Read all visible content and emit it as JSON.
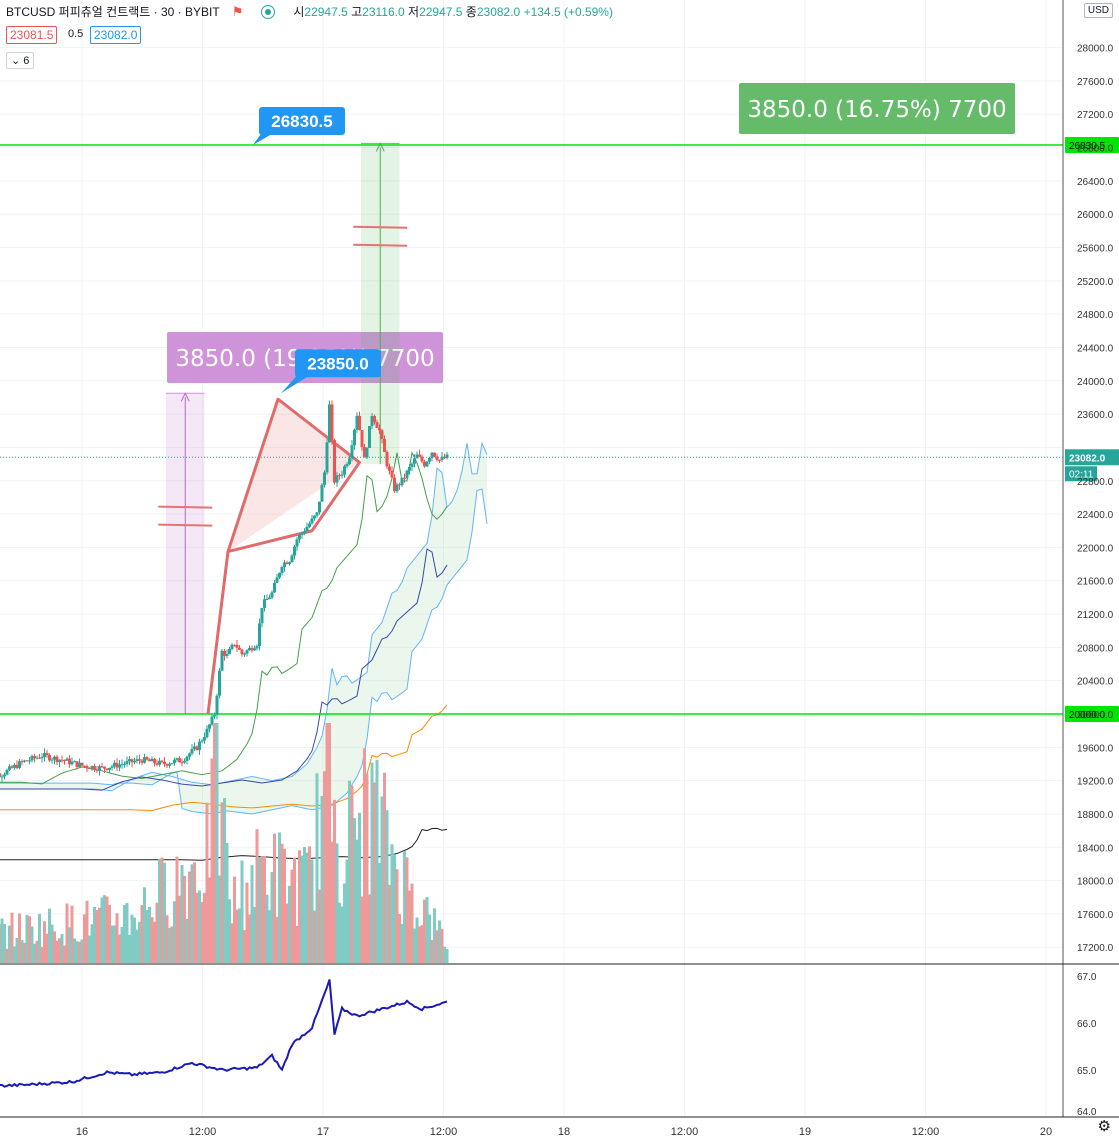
{
  "header": {
    "symbol": "BTCUSD 퍼피츄얼 컨트랙트 · 30 · BYBIT",
    "open_label": "시",
    "open": "22947.5",
    "high_label": "고",
    "high": "23116.0",
    "low_label": "저",
    "low": "22947.5",
    "close_label": "종",
    "close": "23082.0",
    "change": "+134.5 (+0.59%)"
  },
  "bid": "23081.5",
  "spread": "0.5",
  "ask": "23082.0",
  "indicator_count": "6",
  "currency": "USD",
  "colors": {
    "up": "#26a69a",
    "down": "#ef5350",
    "triangle": "#e06b6b",
    "level": "#00e600",
    "proj_left": "#ce93d8",
    "proj_right": "#66bb6a",
    "rsi": "#1a1ab5",
    "price_badge": "#26a69a",
    "callout": "#2196f3"
  },
  "chart_data": {
    "type": "candlestick",
    "x_tick_labels": [
      "16",
      "12:00",
      "17",
      "12:00",
      "18",
      "12:00",
      "19",
      "12:00",
      "20"
    ],
    "y_tick_labels": [
      "28000.0",
      "27600.0",
      "27200.0",
      "26800.0",
      "26400.0",
      "26000.0",
      "25600.0",
      "25200.0",
      "24800.0",
      "24400.0",
      "24000.0",
      "23600.0",
      "23200.0",
      "22800.0",
      "22400.0",
      "22000.0",
      "21600.0",
      "21200.0",
      "20800.0",
      "20400.0",
      "20000.0",
      "19600.0",
      "19200.0",
      "18800.0",
      "18400.0",
      "18000.0",
      "17600.0",
      "17200.0"
    ],
    "ylim": [
      17100,
      28200
    ],
    "y_top_label": "2",
    "current_price": "23082.0",
    "countdown": "02:11",
    "horizontal_levels": [
      {
        "label": "26830.5",
        "value": 26830.5
      },
      {
        "label": "20000.0",
        "value": 20000.0
      }
    ],
    "callouts": [
      {
        "label": "26830.5",
        "value": 26830.5,
        "x_hours": 54.2
      },
      {
        "label": "23850.0",
        "value": 23850.0,
        "x_hours": 59.8
      }
    ],
    "projections": [
      {
        "label": "3850.0 (19.25%) 7700",
        "from": 20000,
        "to": 23850,
        "x_start_hours": 36.8,
        "x_end_hours": 44.5
      },
      {
        "label": "3850.0 (16.75%) 7700",
        "from": 23000,
        "to": 26850,
        "x_start_hours": 75.8,
        "x_end_hours": 83.5
      }
    ],
    "triangle": [
      {
        "x_hours": 45.2,
        "value": 20000
      },
      {
        "x_hours": 49.2,
        "value": 21950
      },
      {
        "x_hours": 59.2,
        "value": 23780
      },
      {
        "x_hours": 75.5,
        "value": 23020
      },
      {
        "x_hours": 66.0,
        "value": 22200
      },
      {
        "x_hours": 49.2,
        "value": 21950
      }
    ],
    "key_prices": [
      {
        "x_hours": 0,
        "value": 19300
      },
      {
        "x_hours": 4,
        "value": 19280
      },
      {
        "x_hours": 8,
        "value": 19420
      },
      {
        "x_hours": 12,
        "value": 19500
      },
      {
        "x_hours": 16,
        "value": 19450
      },
      {
        "x_hours": 20,
        "value": 19380
      },
      {
        "x_hours": 24,
        "value": 19350
      },
      {
        "x_hours": 28,
        "value": 19400
      },
      {
        "x_hours": 32,
        "value": 19450
      },
      {
        "x_hours": 36,
        "value": 19400
      },
      {
        "x_hours": 40,
        "value": 19450
      },
      {
        "x_hours": 43,
        "value": 19600
      },
      {
        "x_hours": 45,
        "value": 19800
      },
      {
        "x_hours": 46.5,
        "value": 20000
      },
      {
        "x_hours": 48,
        "value": 20750
      },
      {
        "x_hours": 49,
        "value": 20700
      },
      {
        "x_hours": 50.5,
        "value": 20850
      },
      {
        "x_hours": 52,
        "value": 20720
      },
      {
        "x_hours": 53.5,
        "value": 20780
      },
      {
        "x_hours": 55,
        "value": 20850
      },
      {
        "x_hours": 56,
        "value": 21300
      },
      {
        "x_hours": 58,
        "value": 21450
      },
      {
        "x_hours": 60,
        "value": 21800
      },
      {
        "x_hours": 61.5,
        "value": 21850
      },
      {
        "x_hours": 63,
        "value": 22100
      },
      {
        "x_hours": 65,
        "value": 22250
      },
      {
        "x_hours": 67,
        "value": 22400
      },
      {
        "x_hours": 68.5,
        "value": 22900
      },
      {
        "x_hours": 69.5,
        "value": 23700
      },
      {
        "x_hours": 70.5,
        "value": 22800
      },
      {
        "x_hours": 72,
        "value": 22900
      },
      {
        "x_hours": 73.5,
        "value": 23100
      },
      {
        "x_hours": 75,
        "value": 23600
      },
      {
        "x_hours": 76.5,
        "value": 23050
      },
      {
        "x_hours": 78,
        "value": 23600
      },
      {
        "x_hours": 79.5,
        "value": 23400
      },
      {
        "x_hours": 81,
        "value": 23000
      },
      {
        "x_hours": 82.5,
        "value": 22700
      },
      {
        "x_hours": 84,
        "value": 22800
      },
      {
        "x_hours": 85.5,
        "value": 22950
      },
      {
        "x_hours": 87,
        "value": 23100
      },
      {
        "x_hours": 88.5,
        "value": 23000
      },
      {
        "x_hours": 90,
        "value": 23150
      },
      {
        "x_hours": 91.5,
        "value": 23050
      },
      {
        "x_hours": 93,
        "value": 23082
      }
    ],
    "volume_key": [
      {
        "x_hours": 0,
        "value": 0.15
      },
      {
        "x_hours": 30,
        "value": 0.25
      },
      {
        "x_hours": 45,
        "value": 0.55
      },
      {
        "x_hours": 46.5,
        "value": 1.0
      },
      {
        "x_hours": 50,
        "value": 0.3
      },
      {
        "x_hours": 56,
        "value": 0.5
      },
      {
        "x_hours": 65,
        "value": 0.4
      },
      {
        "x_hours": 69.5,
        "value": 1.0
      },
      {
        "x_hours": 72,
        "value": 0.6
      },
      {
        "x_hours": 78,
        "value": 0.8
      },
      {
        "x_hours": 84,
        "value": 0.45
      },
      {
        "x_hours": 93,
        "value": 0.1
      }
    ],
    "rsi_y_tick_labels": [
      "67.0",
      "66.0",
      "65.0",
      "64.0"
    ],
    "rsi_ylim": [
      64.0,
      67.2
    ],
    "rsi": [
      {
        "x_hours": 0,
        "value": 64.65
      },
      {
        "x_hours": 8,
        "value": 64.68
      },
      {
        "x_hours": 18,
        "value": 64.75
      },
      {
        "x_hours": 25,
        "value": 64.95
      },
      {
        "x_hours": 30,
        "value": 64.9
      },
      {
        "x_hours": 36,
        "value": 64.95
      },
      {
        "x_hours": 42,
        "value": 65.15
      },
      {
        "x_hours": 48,
        "value": 65.0
      },
      {
        "x_hours": 55,
        "value": 65.05
      },
      {
        "x_hours": 58,
        "value": 65.3
      },
      {
        "x_hours": 60,
        "value": 65.0
      },
      {
        "x_hours": 62,
        "value": 65.55
      },
      {
        "x_hours": 66,
        "value": 65.9
      },
      {
        "x_hours": 69.5,
        "value": 66.9
      },
      {
        "x_hours": 70.5,
        "value": 65.75
      },
      {
        "x_hours": 72,
        "value": 66.3
      },
      {
        "x_hours": 75,
        "value": 66.15
      },
      {
        "x_hours": 80,
        "value": 66.3
      },
      {
        "x_hours": 85,
        "value": 66.45
      },
      {
        "x_hours": 88,
        "value": 66.3
      },
      {
        "x_hours": 93,
        "value": 66.45
      }
    ]
  }
}
